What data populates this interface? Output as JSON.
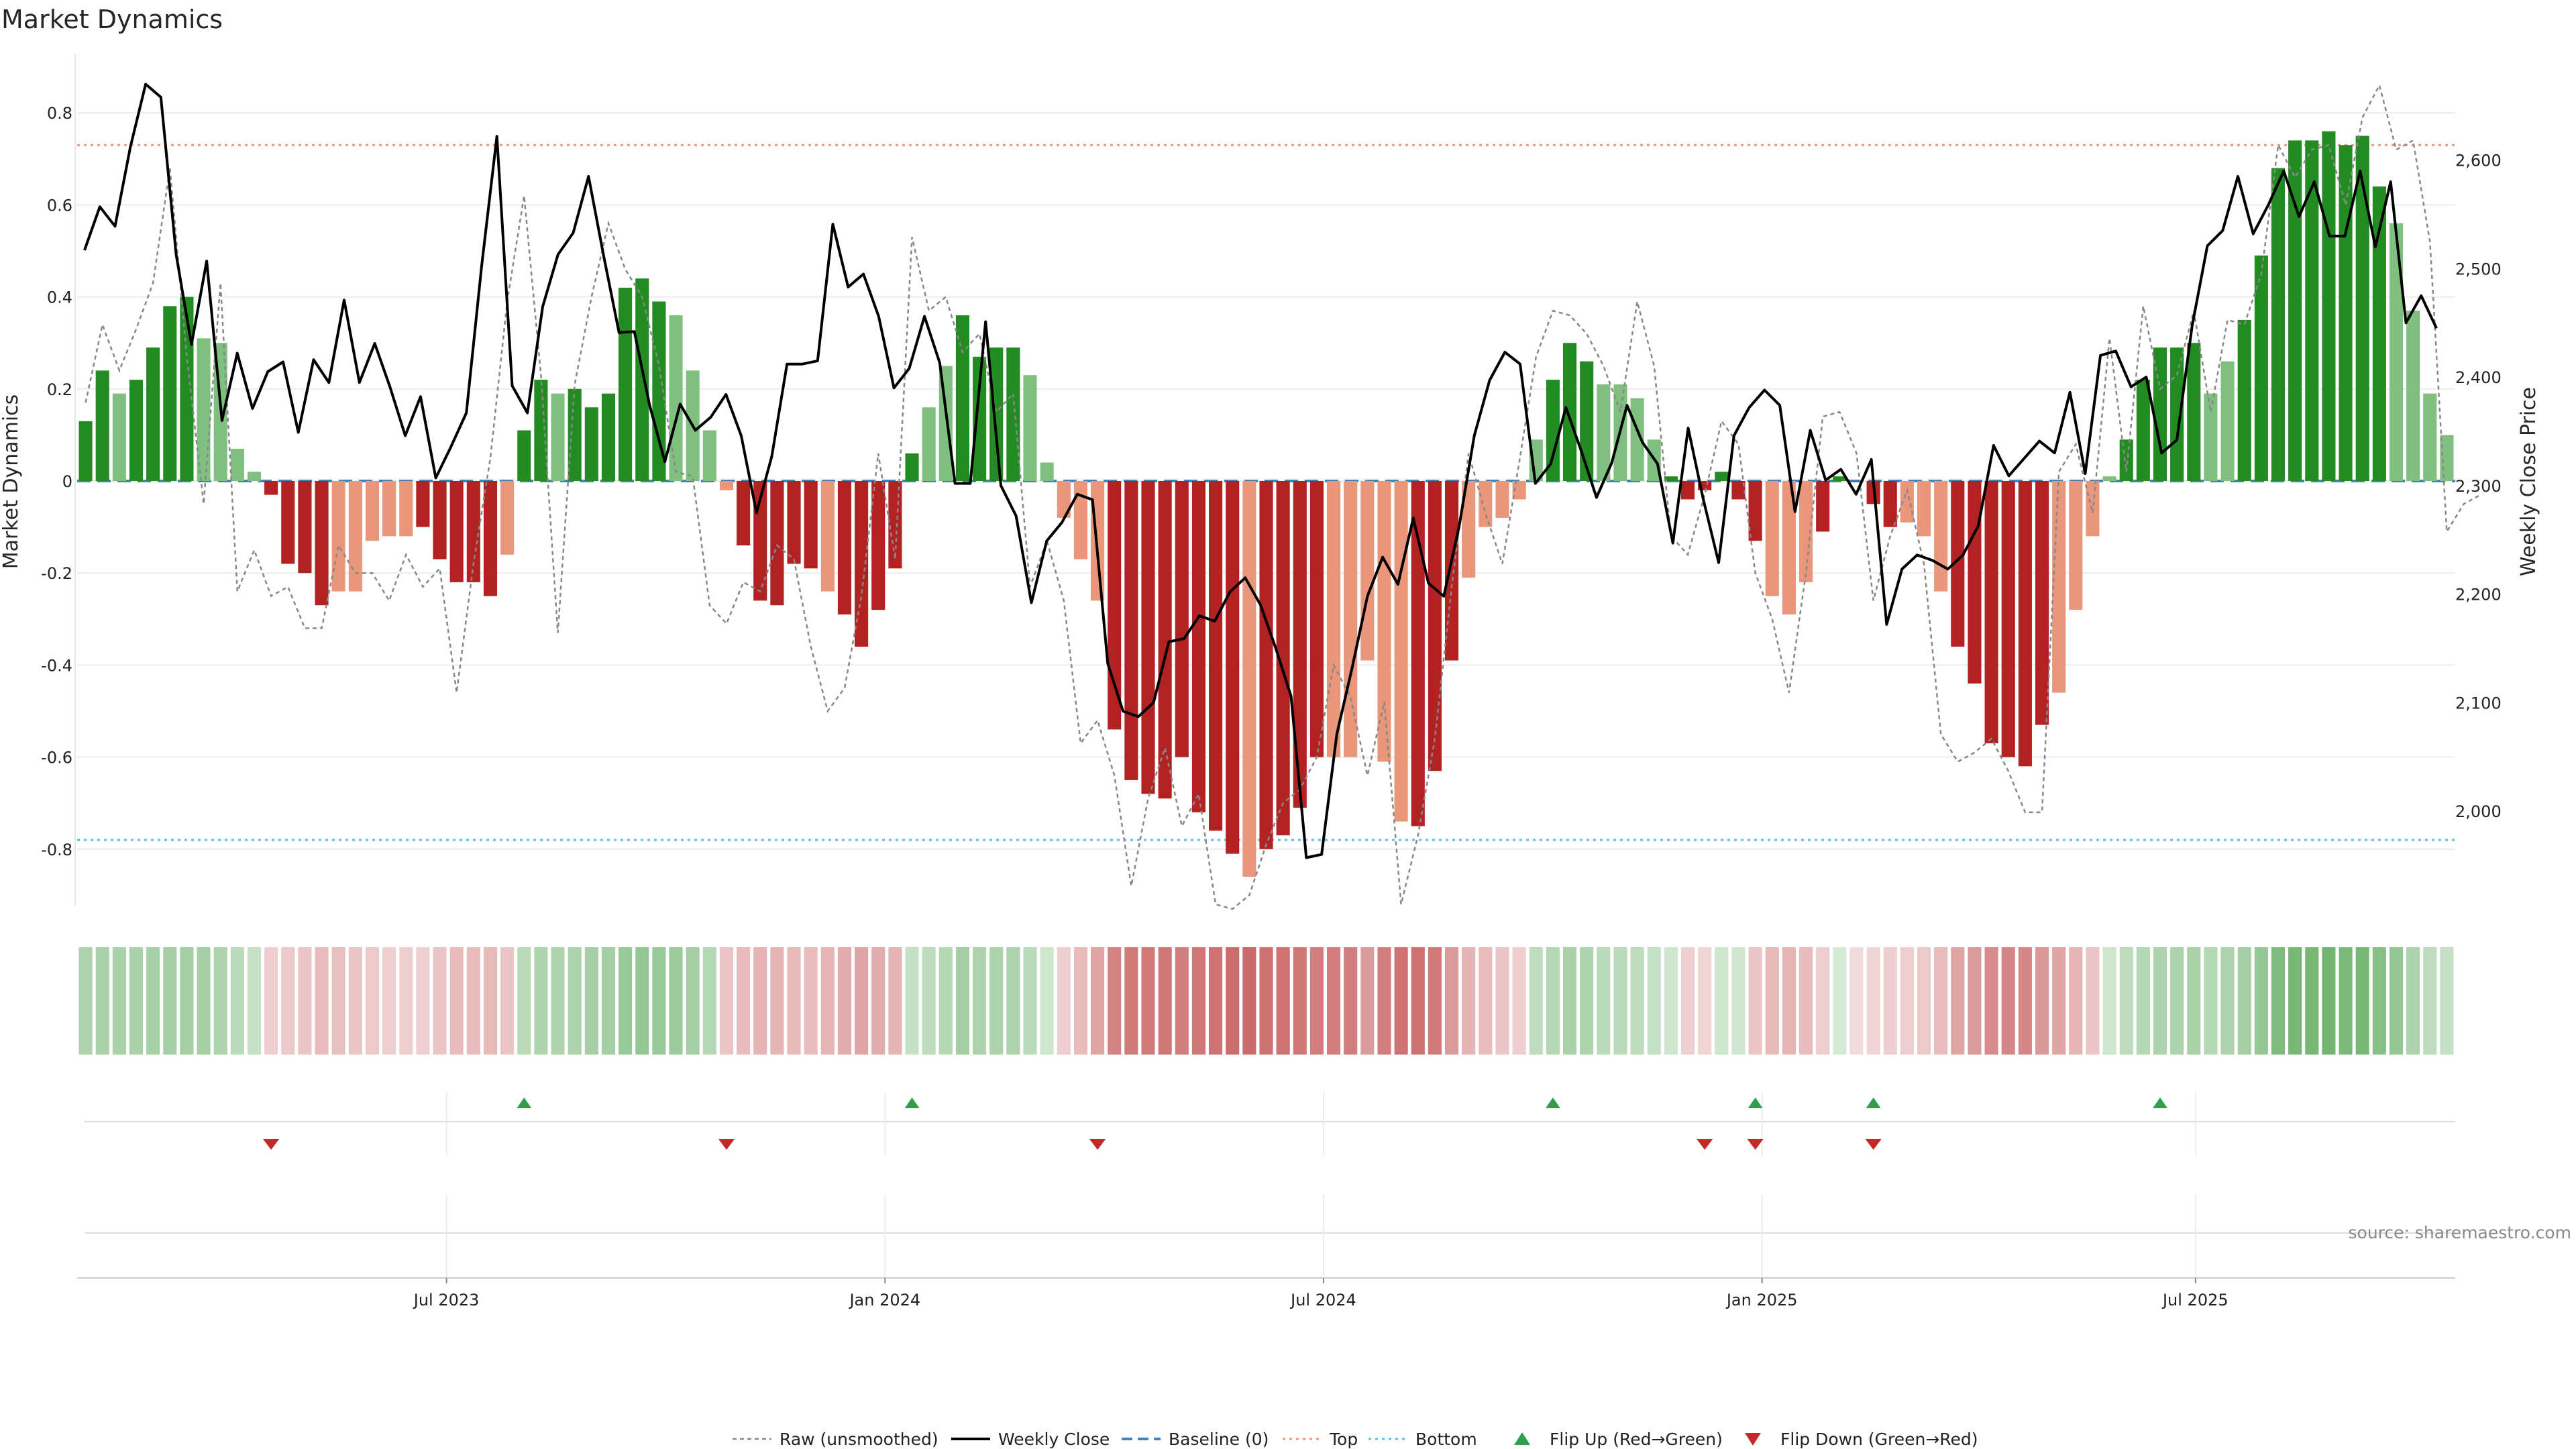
{
  "colors": {
    "strong_green": "#228B22",
    "light_green": "#7FBF7F",
    "strong_red": "#B22222",
    "light_red": "#E9967A",
    "price_line": "#000000",
    "raw_line": "#888888",
    "baseline": "#4682B4",
    "top_line": "#E9967A",
    "bottom_line": "#5BC0DE",
    "flip_up": "#2E9E4F",
    "flip_down": "#C62828"
  },
  "chart_data": {
    "type": "bar",
    "title": "Market Dynamics",
    "ylabel": "Market Dynamics",
    "y2label": "Weekly Close Price",
    "ylim": [
      -0.93,
      0.94
    ],
    "y2lim": [
      1917,
      2683
    ],
    "yticks": [
      "-0.8",
      "-0.6",
      "-0.4",
      "-0.2",
      "0",
      "0.2",
      "0.4",
      "0.6",
      "0.8"
    ],
    "y2ticks": [
      "2,000",
      "2,100",
      "2,200",
      "2,300",
      "2,400",
      "2,500",
      "2,600"
    ],
    "xticks": [
      "Jul 2023",
      "Jan 2024",
      "Jul 2024",
      "Jan 2025",
      "Jul 2025"
    ],
    "top_level": 0.73,
    "bottom_level": -0.78,
    "baseline_level": 0,
    "bar_strength": [
      2,
      2,
      1,
      2,
      2,
      2,
      2,
      1,
      1,
      1,
      1,
      2,
      2,
      2,
      2,
      1,
      1,
      1,
      1,
      1,
      2,
      2,
      2,
      2,
      2,
      1,
      2,
      2,
      1,
      2,
      2,
      2,
      2,
      2,
      2,
      1,
      1,
      1,
      1,
      2,
      2,
      2,
      2,
      2,
      1,
      2,
      2,
      2,
      2,
      2,
      1,
      1,
      2,
      2,
      2,
      2,
      1,
      1,
      1,
      1,
      1,
      2,
      2,
      2,
      2,
      2,
      2,
      2,
      2,
      1,
      2,
      2,
      2,
      2,
      1,
      1,
      1,
      1,
      1,
      2,
      2,
      2,
      1,
      1,
      1,
      1,
      1,
      2,
      2,
      2,
      1,
      1,
      1,
      1,
      2,
      2,
      2,
      2,
      2,
      2,
      1,
      1,
      1,
      2,
      2,
      2,
      2,
      2,
      1,
      1,
      1,
      2,
      2,
      2,
      2,
      2,
      2,
      1,
      1,
      1,
      1,
      2,
      2,
      2,
      2,
      2,
      1,
      1,
      2,
      2,
      2,
      2,
      2,
      2,
      2,
      2,
      2,
      1,
      1,
      1,
      1,
      1,
      1
    ],
    "series": [
      {
        "name": "Market Dynamics (smoothed)",
        "values": [
          0.13,
          0.24,
          0.19,
          0.22,
          0.29,
          0.38,
          0.4,
          0.31,
          0.3,
          0.07,
          0.02,
          -0.03,
          -0.18,
          -0.2,
          -0.27,
          -0.24,
          -0.24,
          -0.13,
          -0.12,
          -0.12,
          -0.1,
          -0.17,
          -0.22,
          -0.22,
          -0.25,
          -0.16,
          0.11,
          0.22,
          0.19,
          0.2,
          0.16,
          0.19,
          0.42,
          0.44,
          0.39,
          0.36,
          0.24,
          0.11,
          -0.02,
          -0.14,
          -0.26,
          -0.27,
          -0.18,
          -0.19,
          -0.24,
          -0.29,
          -0.36,
          -0.28,
          -0.19,
          0.06,
          0.16,
          0.25,
          0.36,
          0.27,
          0.29,
          0.29,
          0.23,
          0.04,
          -0.08,
          -0.17,
          -0.26,
          -0.54,
          -0.65,
          -0.68,
          -0.69,
          -0.6,
          -0.72,
          -0.76,
          -0.81,
          -0.86,
          -0.8,
          -0.77,
          -0.71,
          -0.6,
          -0.6,
          -0.6,
          -0.39,
          -0.61,
          -0.74,
          -0.75,
          -0.63,
          -0.39,
          -0.21,
          -0.1,
          -0.08,
          -0.04,
          0.09,
          0.22,
          0.3,
          0.26,
          0.21,
          0.21,
          0.18,
          0.09,
          0.01,
          -0.04,
          -0.02,
          0.02,
          -0.04,
          -0.13,
          -0.25,
          -0.29,
          -0.22,
          -0.11,
          0.01,
          0.0,
          -0.05,
          -0.1,
          -0.09,
          -0.12,
          -0.24,
          -0.36,
          -0.44,
          -0.57,
          -0.6,
          -0.62,
          -0.53,
          -0.46,
          -0.28,
          -0.12,
          0.01,
          0.09,
          0.22,
          0.29,
          0.29,
          0.3,
          0.19,
          0.26,
          0.35,
          0.49,
          0.68,
          0.74,
          0.74,
          0.76,
          0.73,
          0.75,
          0.64,
          0.56,
          0.37,
          0.19,
          0.1
        ]
      },
      {
        "name": "Raw (unsmoothed)",
        "values": [
          0.17,
          0.34,
          0.24,
          0.33,
          0.43,
          0.68,
          0.27,
          -0.05,
          0.43,
          -0.24,
          -0.15,
          -0.25,
          -0.23,
          -0.32,
          -0.32,
          -0.14,
          -0.2,
          -0.2,
          -0.26,
          -0.16,
          -0.23,
          -0.19,
          -0.46,
          -0.18,
          0.05,
          0.39,
          0.62,
          0.23,
          -0.33,
          0.21,
          0.4,
          0.56,
          0.46,
          0.4,
          0.25,
          0.02,
          0.01,
          -0.27,
          -0.31,
          -0.22,
          -0.24,
          -0.14,
          -0.17,
          -0.36,
          -0.5,
          -0.45,
          -0.25,
          0.06,
          -0.17,
          0.53,
          0.37,
          0.4,
          0.28,
          0.32,
          0.15,
          0.19,
          -0.23,
          -0.13,
          -0.26,
          -0.57,
          -0.52,
          -0.64,
          -0.88,
          -0.69,
          -0.58,
          -0.75,
          -0.68,
          -0.92,
          -0.93,
          -0.9,
          -0.79,
          -0.7,
          -0.67,
          -0.6,
          -0.4,
          -0.47,
          -0.64,
          -0.48,
          -0.92,
          -0.77,
          -0.56,
          -0.23,
          0.06,
          -0.07,
          -0.18,
          0.04,
          0.27,
          0.37,
          0.36,
          0.32,
          0.25,
          0.15,
          0.39,
          0.25,
          -0.12,
          -0.16,
          -0.03,
          0.13,
          0.08,
          -0.2,
          -0.3,
          -0.46,
          -0.2,
          0.14,
          0.15,
          0.06,
          -0.26,
          -0.12,
          -0.02,
          -0.18,
          -0.55,
          -0.61,
          -0.59,
          -0.56,
          -0.63,
          -0.72,
          -0.72,
          0.02,
          0.08,
          -0.07,
          0.31,
          0.02,
          0.38,
          0.2,
          0.23,
          0.37,
          0.15,
          0.35,
          0.34,
          0.45,
          0.73,
          0.66,
          0.72,
          0.73,
          0.6,
          0.79,
          0.86,
          0.72,
          0.74,
          0.52,
          -0.11,
          -0.05,
          -0.03
        ]
      },
      {
        "name": "Weekly Close",
        "values": [
          2517,
          2557,
          2539,
          2612,
          2670,
          2658,
          2513,
          2430,
          2507,
          2360,
          2422,
          2371,
          2405,
          2414,
          2349,
          2416,
          2395,
          2471,
          2395,
          2431,
          2391,
          2346,
          2382,
          2307,
          2336,
          2367,
          2502,
          2622,
          2392,
          2367,
          2465,
          2513,
          2533,
          2585,
          2511,
          2441,
          2442,
          2374,
          2322,
          2375,
          2351,
          2363,
          2384,
          2346,
          2275,
          2327,
          2412,
          2412,
          2415,
          2541,
          2483,
          2495,
          2456,
          2390,
          2408,
          2456,
          2413,
          2302,
          2302,
          2451,
          2300,
          2272,
          2192,
          2249,
          2266,
          2292,
          2287,
          2136,
          2092,
          2087,
          2100,
          2156,
          2159,
          2180,
          2175,
          2202,
          2215,
          2190,
          2150,
          2106,
          1957,
          1960,
          2071,
          2132,
          2198,
          2234,
          2209,
          2270,
          2210,
          2198,
          2262,
          2346,
          2397,
          2423,
          2412,
          2302,
          2320,
          2372,
          2332,
          2289,
          2321,
          2374,
          2340,
          2320,
          2247,
          2353,
          2287,
          2229,
          2346,
          2372,
          2388,
          2374,
          2276,
          2351,
          2305,
          2315,
          2292,
          2324,
          2172,
          2223,
          2236,
          2231,
          2223,
          2236,
          2263,
          2337,
          2309,
          2325,
          2341,
          2330,
          2386,
          2311,
          2420,
          2424,
          2391,
          2400,
          2330,
          2342,
          2447,
          2521,
          2535,
          2585,
          2532,
          2559,
          2590,
          2548,
          2580,
          2530,
          2530,
          2590,
          2520,
          2580,
          2450,
          2475,
          2445
        ]
      }
    ],
    "heat_band": [
      0.5,
      0.52,
      0.52,
      0.52,
      0.54,
      0.55,
      0.55,
      0.55,
      0.5,
      0.42,
      0.35,
      -0.3,
      -0.32,
      -0.35,
      -0.4,
      -0.38,
      -0.35,
      -0.32,
      -0.3,
      -0.3,
      -0.28,
      -0.35,
      -0.4,
      -0.4,
      -0.42,
      -0.35,
      0.42,
      0.48,
      0.48,
      0.5,
      0.55,
      0.55,
      0.62,
      0.65,
      0.62,
      0.6,
      0.55,
      0.45,
      -0.35,
      -0.4,
      -0.45,
      -0.45,
      -0.42,
      -0.4,
      -0.45,
      -0.5,
      -0.55,
      -0.5,
      -0.45,
      0.35,
      0.4,
      0.45,
      0.55,
      0.5,
      0.5,
      0.5,
      0.42,
      0.3,
      -0.3,
      -0.4,
      -0.55,
      -0.75,
      -0.8,
      -0.8,
      -0.82,
      -0.78,
      -0.82,
      -0.85,
      -0.88,
      -0.9,
      -0.86,
      -0.85,
      -0.82,
      -0.78,
      -0.78,
      -0.78,
      -0.6,
      -0.78,
      -0.85,
      -0.86,
      -0.8,
      -0.6,
      -0.45,
      -0.4,
      -0.35,
      -0.3,
      0.4,
      0.45,
      0.52,
      0.48,
      0.42,
      0.42,
      0.4,
      0.35,
      0.3,
      -0.28,
      -0.25,
      0.3,
      0.28,
      -0.35,
      -0.42,
      -0.45,
      -0.4,
      -0.3,
      0.25,
      -0.22,
      -0.25,
      -0.3,
      -0.3,
      -0.32,
      -0.4,
      -0.55,
      -0.6,
      -0.7,
      -0.72,
      -0.72,
      -0.62,
      -0.55,
      -0.45,
      -0.35,
      0.3,
      0.4,
      0.45,
      0.5,
      0.5,
      0.52,
      0.45,
      0.5,
      0.55,
      0.65,
      0.78,
      0.82,
      0.82,
      0.84,
      0.8,
      0.82,
      0.72,
      0.65,
      0.5,
      0.4,
      0.35
    ],
    "flip_up_bars": [
      26,
      49,
      87,
      99,
      106,
      123
    ],
    "flip_down_bars": [
      11,
      38,
      60,
      96,
      99,
      106
    ],
    "legend": [
      "Raw (unsmoothed)",
      "Weekly Close",
      "Baseline (0)",
      "Top",
      "Bottom",
      "Flip Up (Red→Green)",
      "Flip Down (Green→Red)"
    ],
    "source": "source: sharemaestro.com"
  }
}
